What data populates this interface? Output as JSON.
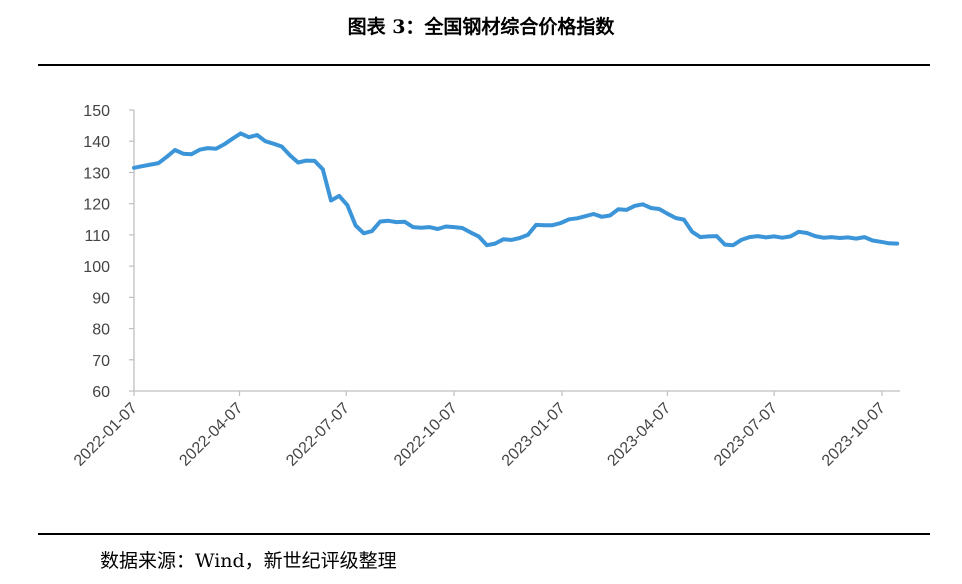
{
  "header": {
    "title": "图表 3：全国钢材综合价格指数"
  },
  "footer": {
    "source": "数据来源：Wind，新世纪评级整理"
  },
  "colors": {
    "line": "#3b95d8",
    "axis": "#bfbfbf"
  },
  "chart_data": {
    "type": "line",
    "title": "",
    "xlabel": "",
    "ylabel": "",
    "ylim": [
      60,
      150
    ],
    "y_ticks": [
      60,
      70,
      80,
      90,
      100,
      110,
      120,
      130,
      140,
      150
    ],
    "x_tick_labels": [
      "2022-01-07",
      "2022-04-07",
      "2022-07-07",
      "2022-10-07",
      "2023-01-07",
      "2023-04-07",
      "2023-07-07",
      "2023-10-07"
    ],
    "grid": false,
    "series": [
      {
        "values": [
          [
            "2022-01-07",
            131.5
          ],
          [
            "2022-01-14",
            132.0
          ],
          [
            "2022-01-21",
            132.5
          ],
          [
            "2022-01-28",
            133.0
          ],
          [
            "2022-02-04",
            135.0
          ],
          [
            "2022-02-11",
            137.2
          ],
          [
            "2022-02-18",
            136.0
          ],
          [
            "2022-02-25",
            135.8
          ],
          [
            "2022-03-04",
            137.3
          ],
          [
            "2022-03-11",
            137.8
          ],
          [
            "2022-03-18",
            137.6
          ],
          [
            "2022-03-25",
            139.0
          ],
          [
            "2022-04-01",
            140.8
          ],
          [
            "2022-04-08",
            142.5
          ],
          [
            "2022-04-15",
            141.3
          ],
          [
            "2022-04-22",
            142.0
          ],
          [
            "2022-04-29",
            140.0
          ],
          [
            "2022-05-06",
            139.2
          ],
          [
            "2022-05-13",
            138.3
          ],
          [
            "2022-05-20",
            135.5
          ],
          [
            "2022-05-27",
            133.2
          ],
          [
            "2022-06-03",
            133.8
          ],
          [
            "2022-06-10",
            133.7
          ],
          [
            "2022-06-17",
            131.0
          ],
          [
            "2022-06-24",
            121.0
          ],
          [
            "2022-07-01",
            122.5
          ],
          [
            "2022-07-08",
            119.5
          ],
          [
            "2022-07-15",
            113.0
          ],
          [
            "2022-07-22",
            110.5
          ],
          [
            "2022-07-29",
            111.2
          ],
          [
            "2022-08-05",
            114.3
          ],
          [
            "2022-08-12",
            114.5
          ],
          [
            "2022-08-19",
            114.1
          ],
          [
            "2022-08-26",
            114.2
          ],
          [
            "2022-09-02",
            112.5
          ],
          [
            "2022-09-09",
            112.3
          ],
          [
            "2022-09-16",
            112.5
          ],
          [
            "2022-09-23",
            111.9
          ],
          [
            "2022-09-30",
            112.7
          ],
          [
            "2022-10-07",
            112.5
          ],
          [
            "2022-10-14",
            112.2
          ],
          [
            "2022-10-21",
            110.8
          ],
          [
            "2022-10-28",
            109.5
          ],
          [
            "2022-11-04",
            106.7
          ],
          [
            "2022-11-11",
            107.2
          ],
          [
            "2022-11-18",
            108.6
          ],
          [
            "2022-11-25",
            108.4
          ],
          [
            "2022-12-02",
            109.0
          ],
          [
            "2022-12-09",
            110.0
          ],
          [
            "2022-12-16",
            113.2
          ],
          [
            "2022-12-23",
            113.1
          ],
          [
            "2022-12-30",
            113.1
          ],
          [
            "2023-01-06",
            113.8
          ],
          [
            "2023-01-13",
            115.0
          ],
          [
            "2023-01-20",
            115.3
          ],
          [
            "2023-01-27",
            116.0
          ],
          [
            "2023-02-03",
            116.7
          ],
          [
            "2023-02-10",
            115.8
          ],
          [
            "2023-02-17",
            116.2
          ],
          [
            "2023-02-24",
            118.2
          ],
          [
            "2023-03-03",
            118.0
          ],
          [
            "2023-03-10",
            119.3
          ],
          [
            "2023-03-17",
            119.8
          ],
          [
            "2023-03-24",
            118.6
          ],
          [
            "2023-03-31",
            118.3
          ],
          [
            "2023-04-07",
            116.8
          ],
          [
            "2023-04-14",
            115.4
          ],
          [
            "2023-04-21",
            114.9
          ],
          [
            "2023-04-28",
            111.0
          ],
          [
            "2023-05-05",
            109.3
          ],
          [
            "2023-05-12",
            109.5
          ],
          [
            "2023-05-19",
            109.6
          ],
          [
            "2023-05-26",
            106.9
          ],
          [
            "2023-06-02",
            106.7
          ],
          [
            "2023-06-09",
            108.4
          ],
          [
            "2023-06-16",
            109.3
          ],
          [
            "2023-06-23",
            109.6
          ],
          [
            "2023-06-30",
            109.2
          ],
          [
            "2023-07-07",
            109.5
          ],
          [
            "2023-07-14",
            109.1
          ],
          [
            "2023-07-21",
            109.5
          ],
          [
            "2023-07-28",
            111.0
          ],
          [
            "2023-08-04",
            110.6
          ],
          [
            "2023-08-11",
            109.6
          ],
          [
            "2023-08-18",
            109.1
          ],
          [
            "2023-08-25",
            109.3
          ],
          [
            "2023-09-01",
            109.0
          ],
          [
            "2023-09-08",
            109.2
          ],
          [
            "2023-09-15",
            108.8
          ],
          [
            "2023-09-22",
            109.3
          ],
          [
            "2023-09-29",
            108.2
          ],
          [
            "2023-10-06",
            107.8
          ],
          [
            "2023-10-13",
            107.3
          ],
          [
            "2023-10-20",
            107.2
          ]
        ]
      }
    ]
  }
}
